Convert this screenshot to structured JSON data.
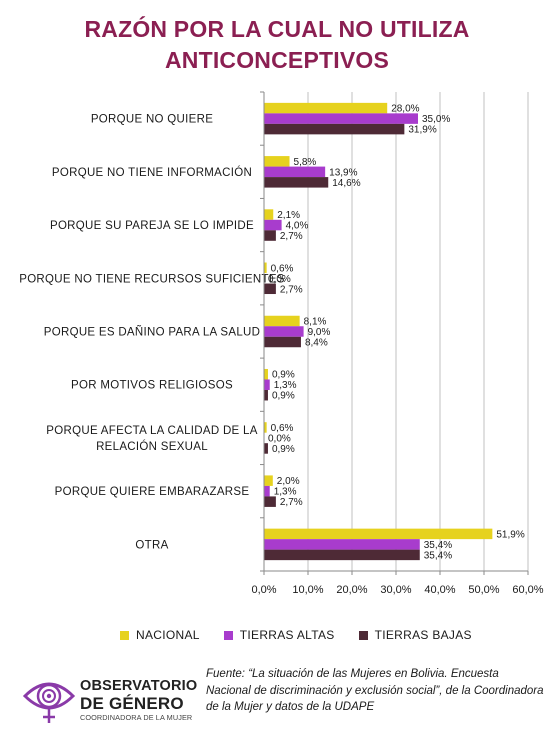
{
  "title_line1": "RAZÓN POR LA CUAL NO UTILIZA",
  "title_line2": "ANTICONCEPTIVOS",
  "colors": {
    "nacional": "#e6d21e",
    "tierras_altas": "#a83ccd",
    "tierras_bajas": "#4e2a36",
    "title": "#8b1f52",
    "grid": "#c0c0c0"
  },
  "chart_data": {
    "type": "bar",
    "orientation": "horizontal",
    "categories": [
      [
        "PORQUE NO QUIERE"
      ],
      [
        "PORQUE NO TIENE INFORMACIÓN"
      ],
      [
        "PORQUE SU PAREJA SE LO IMPIDE"
      ],
      [
        "PORQUE NO TIENE RECURSOS SUFICIENTES"
      ],
      [
        "PORQUE ES DAÑINO PARA LA SALUD"
      ],
      [
        "POR MOTIVOS RELIGIOSOS"
      ],
      [
        "PORQUE AFECTA LA CALIDAD DE LA",
        "RELACIÓN SEXUAL"
      ],
      [
        "PORQUE QUIERE EMBARAZARSE"
      ],
      [
        "OTRA"
      ]
    ],
    "series": [
      {
        "name": "NACIONAL",
        "color": "#e6d21e",
        "values": [
          28.0,
          5.8,
          2.1,
          0.6,
          8.1,
          0.9,
          0.6,
          2.0,
          51.9
        ],
        "labels": [
          "28,0%",
          "5,8%",
          "2,1%",
          "0,6%",
          "8,1%",
          "0,9%",
          "0,6%",
          "2,0%",
          "51,9%"
        ]
      },
      {
        "name": "TIERRAS ALTAS",
        "color": "#a83ccd",
        "values": [
          35.0,
          13.9,
          4.0,
          0.0,
          9.0,
          1.3,
          0.0,
          1.3,
          35.4
        ],
        "labels": [
          "35,0%",
          "13,9%",
          "4,0%",
          "0,0%",
          "9,0%",
          "1,3%",
          "0,0%",
          "1,3%",
          "35,4%"
        ]
      },
      {
        "name": "TIERRAS BAJAS",
        "color": "#4e2a36",
        "values": [
          31.9,
          14.6,
          2.7,
          2.7,
          8.4,
          0.9,
          0.9,
          2.7,
          35.4
        ],
        "labels": [
          "31,9%",
          "14,6%",
          "2,7%",
          "2,7%",
          "8,4%",
          "0,9%",
          "0,9%",
          "2,7%",
          "35,4%"
        ]
      }
    ],
    "xlim": [
      0,
      60
    ],
    "xticks": [
      0,
      10,
      20,
      30,
      40,
      50,
      60
    ],
    "xtick_labels": [
      "0,0%",
      "10,0%",
      "20,0%",
      "30,0%",
      "40,0%",
      "50,0%",
      "60,0%"
    ],
    "grid": true,
    "legend": "bottom"
  },
  "legend": {
    "nacional": "NACIONAL",
    "tierras_altas": "TIERRAS ALTAS",
    "tierras_bajas": "TIERRAS BAJAS"
  },
  "logo": {
    "line1": "OBSERVATORIO",
    "line2": "DE GÉNERO",
    "line3": "COORDINADORA DE LA MUJER",
    "icon": "eye-venus-icon"
  },
  "source": "Fuente: “La situación de las Mujeres en Bolivia. Encuesta Nacional de discriminación y exclusión social”, de la Coordinadora de la Mujer y datos de la UDAPE"
}
